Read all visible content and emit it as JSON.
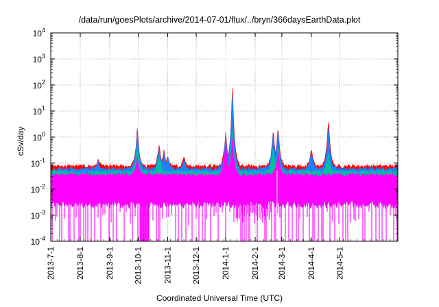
{
  "chart_data": {
    "type": "line",
    "title": "/data/run/goesPlots/archive/2014-07-01/flux/../bryn/366daysEarthData.plot",
    "xlabel": "Coordinated Universal Time (UTC)",
    "ylabel": "cSv/day",
    "yscale": "log",
    "ylim": [
      0.0001,
      10000
    ],
    "y_ticks": [
      {
        "value": 0.0001,
        "base": "10",
        "exp": "-4"
      },
      {
        "value": 0.001,
        "base": "10",
        "exp": "-3"
      },
      {
        "value": 0.01,
        "base": "10",
        "exp": "-2"
      },
      {
        "value": 0.1,
        "base": "10",
        "exp": "-1"
      },
      {
        "value": 1,
        "base": "10",
        "exp": "0"
      },
      {
        "value": 10,
        "base": "10",
        "exp": "1"
      },
      {
        "value": 100,
        "base": "10",
        "exp": "2"
      },
      {
        "value": 1000,
        "base": "10",
        "exp": "3"
      },
      {
        "value": 10000,
        "base": "10",
        "exp": "4"
      }
    ],
    "xlim": [
      "2013-07-01",
      "2014-07-01"
    ],
    "x_ticks": [
      "2013-7-1",
      "2013-8-1",
      "2013-9-1",
      "2013-10-1",
      "2013-11-1",
      "2013-12-1",
      "2014-1-1",
      "2014-2-1",
      "2014-3-1",
      "2014-4-1",
      "2014-5-1"
    ],
    "x_tick_dates": [
      "2013-07-01",
      "2013-08-01",
      "2013-09-01",
      "2013-10-01",
      "2013-11-01",
      "2013-12-01",
      "2014-01-01",
      "2014-02-01",
      "2014-03-01",
      "2014-04-01",
      "2014-05-01"
    ],
    "grid": true,
    "series_colors": [
      "#ff0000",
      "#1e7fff",
      "#00c0a0",
      "#ff00ff"
    ],
    "envelopes": [
      {
        "color": "#ff0000",
        "upper_base": 0.075,
        "peaks": [
          [
            "2013-08-20",
            0.15
          ],
          [
            "2013-09-30",
            2.7
          ],
          [
            "2013-10-23",
            0.6
          ],
          [
            "2013-10-28",
            0.35
          ],
          [
            "2013-11-01",
            0.25
          ],
          [
            "2013-11-18",
            0.2
          ],
          [
            "2014-01-01",
            2.0
          ],
          [
            "2014-01-08",
            120
          ],
          [
            "2014-02-20",
            2.5
          ],
          [
            "2014-02-25",
            3.0
          ],
          [
            "2014-04-01",
            0.4
          ],
          [
            "2014-04-19",
            6.0
          ]
        ]
      },
      {
        "color": "#1e7fff",
        "upper_base": 0.06,
        "peaks": [
          [
            "2013-08-20",
            0.12
          ],
          [
            "2013-09-30",
            2.0
          ],
          [
            "2013-10-23",
            0.45
          ],
          [
            "2013-10-28",
            0.28
          ],
          [
            "2013-11-01",
            0.2
          ],
          [
            "2013-11-18",
            0.15
          ],
          [
            "2014-01-01",
            1.5
          ],
          [
            "2014-01-08",
            80
          ],
          [
            "2014-02-20",
            1.8
          ],
          [
            "2014-02-25",
            2.2
          ],
          [
            "2014-04-01",
            0.3
          ],
          [
            "2014-04-19",
            3.0
          ]
        ]
      },
      {
        "color": "#00c0a0",
        "upper_base": 0.045,
        "peaks": [
          [
            "2013-09-30",
            0.6
          ],
          [
            "2013-10-23",
            0.25
          ],
          [
            "2014-01-01",
            0.3
          ],
          [
            "2014-01-08",
            3.0
          ],
          [
            "2014-02-20",
            0.5
          ],
          [
            "2014-02-25",
            0.6
          ],
          [
            "2014-04-19",
            0.3
          ]
        ]
      },
      {
        "color": "#ff00ff",
        "upper_base": 0.035,
        "peaks": [
          [
            "2013-09-30",
            0.2
          ],
          [
            "2014-01-01",
            0.8
          ],
          [
            "2014-01-08",
            1.2
          ],
          [
            "2014-02-25",
            0.4
          ]
        ]
      }
    ],
    "lower_envelope": {
      "color": "#ff00ff",
      "base": 0.003,
      "min": 0.0001
    }
  }
}
